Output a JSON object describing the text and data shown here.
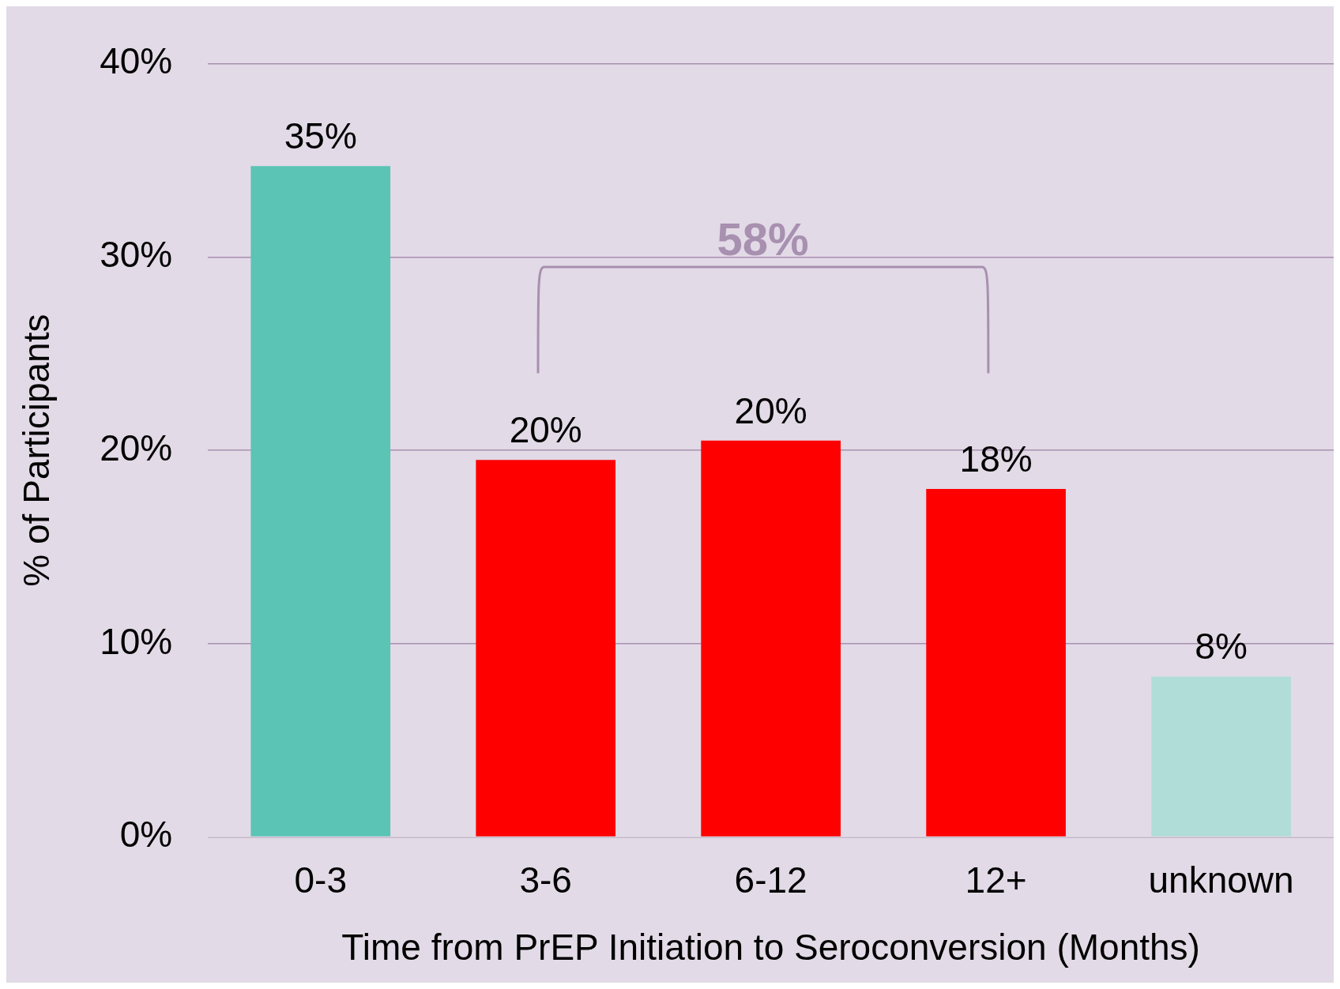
{
  "chart_data": {
    "type": "bar",
    "xlabel": "Time from PrEP Initiation to Seroconversion (Months)",
    "ylabel": "% of Participants",
    "categories": [
      "0-3",
      "3-6",
      "6-12",
      "12+",
      "unknown"
    ],
    "values": [
      34.7,
      19.5,
      20.5,
      18,
      8.3
    ],
    "colors": [
      "#5bc4b4",
      "#ff0000",
      "#ff0000",
      "#ff0000",
      "#b0ddd8"
    ],
    "value_labels": [
      "35%",
      "20%",
      "20%",
      "18%",
      "8%"
    ],
    "ylim": [
      0,
      40
    ],
    "yticks": [
      {
        "value": 0,
        "label": "0%"
      },
      {
        "value": 10,
        "label": "10%"
      },
      {
        "value": 20,
        "label": "20%"
      },
      {
        "value": 30,
        "label": "30%"
      },
      {
        "value": 40,
        "label": "40%"
      }
    ],
    "grid": "y",
    "legend": false,
    "annotations": [
      "58%"
    ]
  }
}
